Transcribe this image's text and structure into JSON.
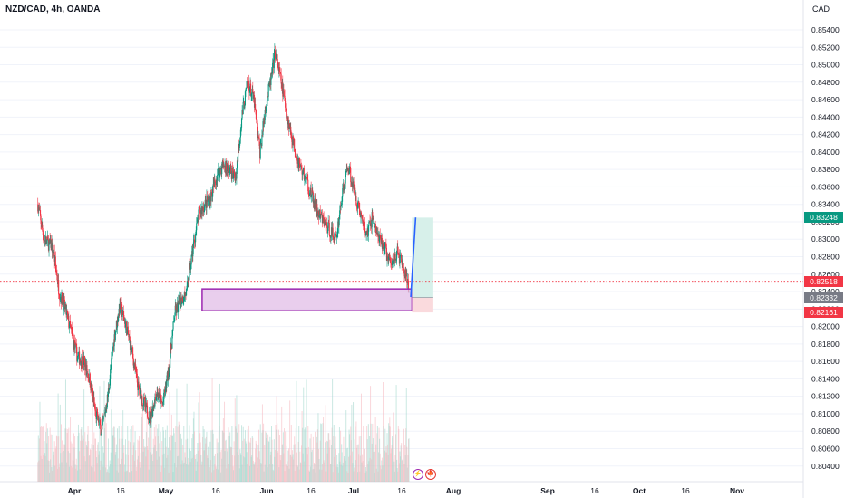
{
  "header": {
    "symbol": "NZD/CAD, 4h, OANDA",
    "currency": "CAD"
  },
  "colors": {
    "up": "#089981",
    "down": "#f23645",
    "zone_fill": "#e1bee7",
    "zone_border": "#9c27b0",
    "target_fill": "#d7f0ea",
    "stop_fill": "#fadadd",
    "projection": "#2962ff",
    "grid": "#f0f3fa",
    "axis_text": "#131722"
  },
  "chart_data": {
    "type": "candlestick",
    "x_ticks": [
      "Apr",
      "16",
      "May",
      "16",
      "Jun",
      "16",
      "Jul",
      "16",
      "Aug",
      "Sep",
      "16",
      "Oct",
      "16",
      "Nov"
    ],
    "y_ticks": [
      "0.85400",
      "0.85200",
      "0.85000",
      "0.84800",
      "0.84600",
      "0.84400",
      "0.84200",
      "0.84000",
      "0.83800",
      "0.83600",
      "0.83400",
      "0.83200",
      "0.83000",
      "0.82800",
      "0.82600",
      "0.82400",
      "0.82200",
      "0.82000",
      "0.81800",
      "0.81600",
      "0.81400",
      "0.81200",
      "0.81000",
      "0.80800",
      "0.80600",
      "0.80400"
    ],
    "ylim": [
      0.8032,
      0.8565
    ],
    "price_path": [
      [
        "Mar 20",
        0.834
      ],
      [
        "Mar 22",
        0.83
      ],
      [
        "Mar 25",
        0.829
      ],
      [
        "Mar 27",
        0.824
      ],
      [
        "Mar 29",
        0.822
      ],
      [
        "Apr 2",
        0.8165
      ],
      [
        "Apr 4",
        0.816
      ],
      [
        "Apr 6",
        0.814
      ],
      [
        "Apr 8",
        0.81
      ],
      [
        "Apr 10",
        0.808
      ],
      [
        "Apr 12",
        0.812
      ],
      [
        "Apr 14",
        0.8185
      ],
      [
        "Apr 16",
        0.8225
      ],
      [
        "Apr 18",
        0.82
      ],
      [
        "Apr 20",
        0.817
      ],
      [
        "Apr 22",
        0.813
      ],
      [
        "Apr 24",
        0.811
      ],
      [
        "Apr 26",
        0.8095
      ],
      [
        "Apr 28",
        0.8125
      ],
      [
        "Apr 30",
        0.811
      ],
      [
        "May 2",
        0.815
      ],
      [
        "May 4",
        0.8215
      ],
      [
        "May 6",
        0.823
      ],
      [
        "May 8",
        0.824
      ],
      [
        "May 10",
        0.829
      ],
      [
        "May 12",
        0.833
      ],
      [
        "May 14",
        0.834
      ],
      [
        "May 16",
        0.835
      ],
      [
        "May 18",
        0.8375
      ],
      [
        "May 20",
        0.8385
      ],
      [
        "May 22",
        0.838
      ],
      [
        "May 24",
        0.837
      ],
      [
        "May 26",
        0.844
      ],
      [
        "May 28",
        0.848
      ],
      [
        "May 30",
        0.846
      ],
      [
        "Jun 1",
        0.84
      ],
      [
        "Jun 3",
        0.8455
      ],
      [
        "Jun 5",
        0.849
      ],
      [
        "Jun 6",
        0.8515
      ],
      [
        "Jun 8",
        0.848
      ],
      [
        "Jun 10",
        0.844
      ],
      [
        "Jun 12",
        0.841
      ],
      [
        "Jun 14",
        0.8385
      ],
      [
        "Jun 16",
        0.837
      ],
      [
        "Jun 18",
        0.835
      ],
      [
        "Jun 20",
        0.833
      ],
      [
        "Jun 22",
        0.832
      ],
      [
        "Jun 24",
        0.831
      ],
      [
        "Jun 26",
        0.83
      ],
      [
        "Jun 28",
        0.835
      ],
      [
        "Jun 30",
        0.8385
      ],
      [
        "Jul 2",
        0.8355
      ],
      [
        "Jul 4",
        0.833
      ],
      [
        "Jul 6",
        0.8305
      ],
      [
        "Jul 8",
        0.8325
      ],
      [
        "Jul 10",
        0.83
      ],
      [
        "Jul 12",
        0.829
      ],
      [
        "Jul 14",
        0.827
      ],
      [
        "Jul 16",
        0.8285
      ],
      [
        "Jul 18",
        0.827
      ],
      [
        "Jul 20",
        0.824
      ]
    ],
    "demand_zone": {
      "from": "May 13",
      "to": "Jul 21",
      "top": 0.8243,
      "bottom": 0.8218
    },
    "position": {
      "start": "Jul 21",
      "end": "Jul 28",
      "entry": 0.82332,
      "target": 0.83248,
      "stop": 0.82161
    },
    "projection_line": [
      [
        "Jul 20",
        0.824
      ],
      [
        "Jul 21",
        0.8325
      ]
    ],
    "current_price_line": 0.82518,
    "price_labels": [
      {
        "value": "0.83248",
        "price": 0.83248,
        "color": "#089981"
      },
      {
        "value": "0.82518",
        "price": 0.82518,
        "color": "#f23645"
      },
      {
        "value": "0.82332",
        "price": 0.82332,
        "color": "#787b86"
      },
      {
        "value": "0.82161",
        "price": 0.82161,
        "color": "#f23645"
      }
    ]
  },
  "events": [
    {
      "name": "lightning",
      "glyph": "⚡"
    },
    {
      "name": "flag",
      "glyph": "🍁"
    }
  ]
}
